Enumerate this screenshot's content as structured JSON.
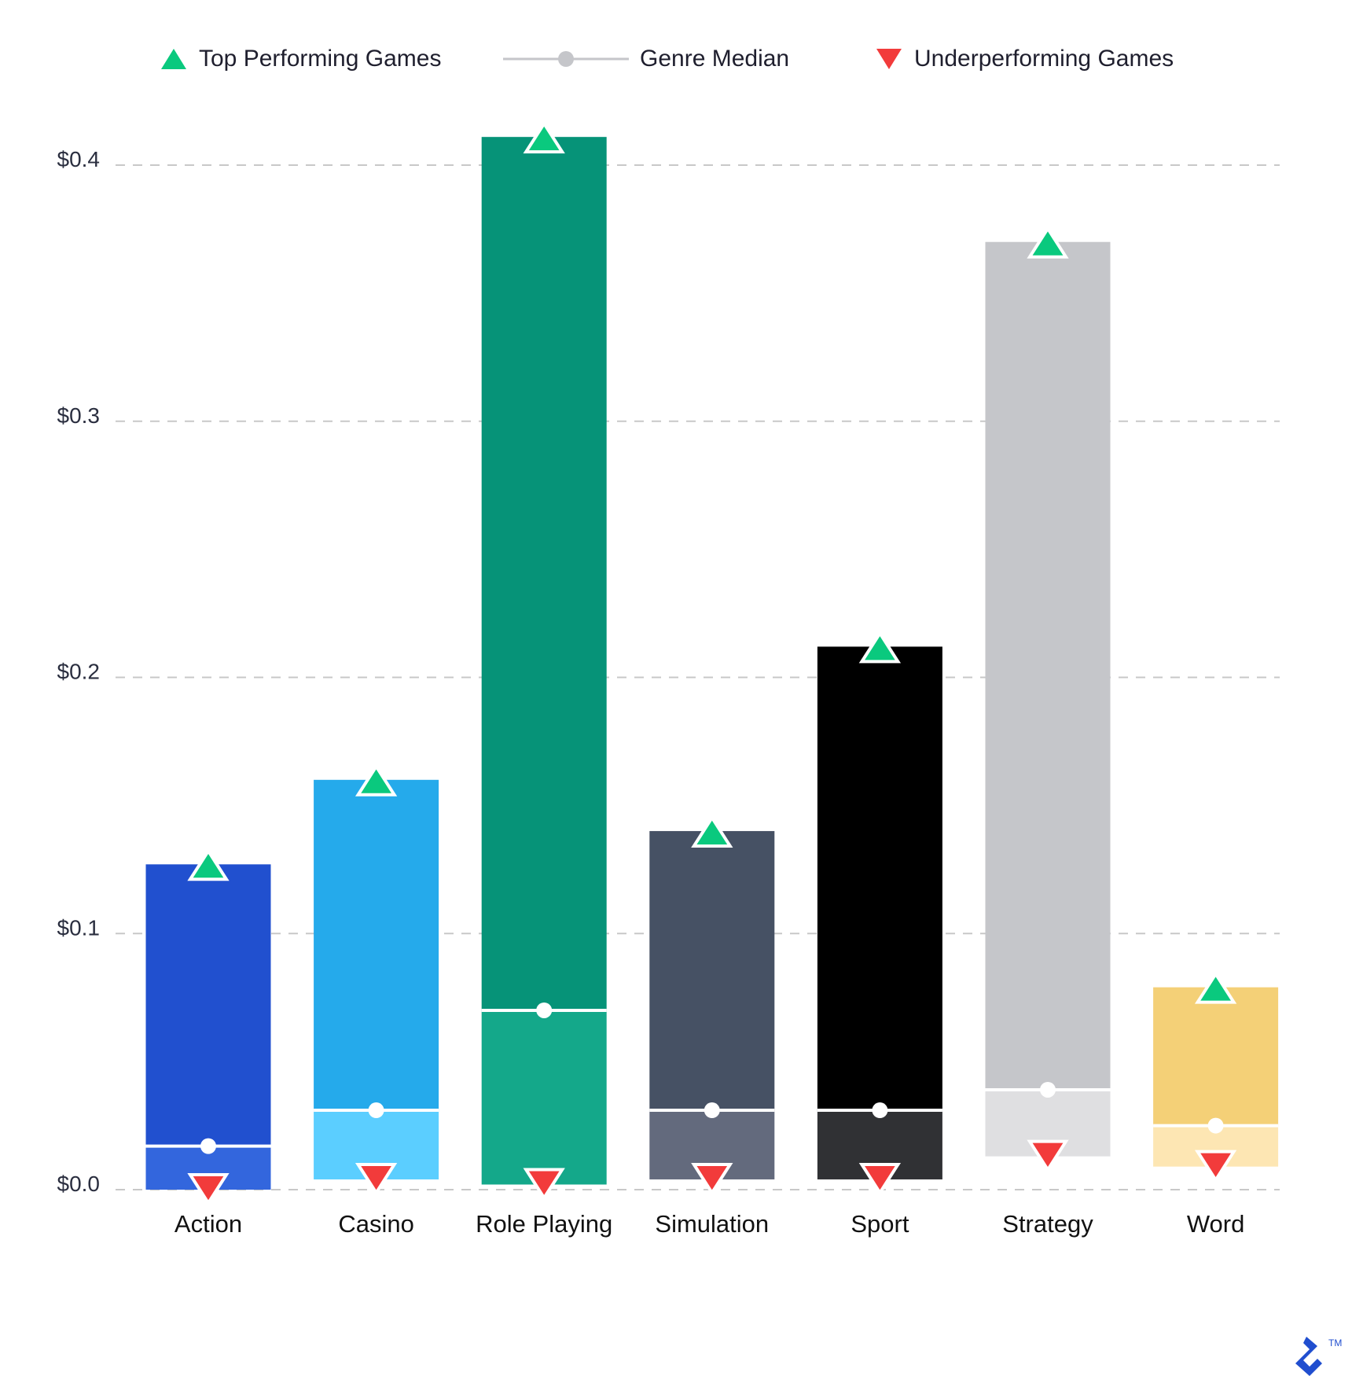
{
  "legend": {
    "top": "Top Performing Games",
    "median": "Genre Median",
    "under": "Underperforming Games"
  },
  "colors": {
    "top_marker": "#0AC97E",
    "under_marker": "#F23B3B",
    "median_marker": "#C5C6CA",
    "grid": "#C8C8C8",
    "logo": "#204ECF"
  },
  "chart_data": {
    "type": "bar",
    "categories": [
      "Action",
      "Casino",
      "Role Playing",
      "Simulation",
      "Sport",
      "Strategy",
      "Word"
    ],
    "series": [
      {
        "name": "Top Performing Games",
        "values": [
          0.127,
          0.16,
          0.411,
          0.14,
          0.212,
          0.37,
          0.079
        ]
      },
      {
        "name": "Genre Median",
        "values": [
          0.017,
          0.031,
          0.07,
          0.031,
          0.031,
          0.039,
          0.025
        ]
      },
      {
        "name": "Underperforming Games",
        "values": [
          0.0,
          0.004,
          0.002,
          0.004,
          0.004,
          0.013,
          0.009
        ]
      }
    ],
    "bar_colors_upper": [
      "#2150CF",
      "#25AAEB",
      "#069378",
      "#465164",
      "#000000",
      "#C5C6CA",
      "#F4D077"
    ],
    "bar_colors_lower": [
      "#3366DD",
      "#5BCEFF",
      "#14A88A",
      "#636A7D",
      "#303134",
      "#DFDFE1",
      "#FDE6B3"
    ],
    "yticks": [
      0.0,
      0.1,
      0.2,
      0.3,
      0.4
    ],
    "ytick_labels": [
      "$0.0",
      "$0.1",
      "$0.2",
      "$0.3",
      "$0.4"
    ],
    "ylim": [
      0,
      0.4
    ],
    "grid": true,
    "legend_position": "top",
    "title": "",
    "xlabel": "",
    "ylabel": ""
  }
}
